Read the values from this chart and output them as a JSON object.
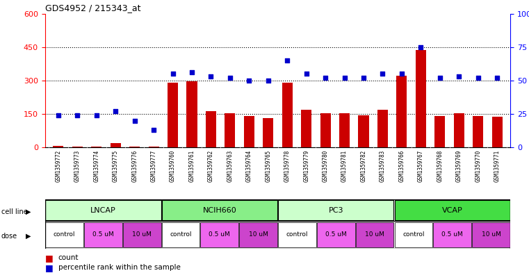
{
  "title": "GDS4952 / 215343_at",
  "samples": [
    "GSM1359772",
    "GSM1359773",
    "GSM1359774",
    "GSM1359775",
    "GSM1359776",
    "GSM1359777",
    "GSM1359760",
    "GSM1359761",
    "GSM1359762",
    "GSM1359763",
    "GSM1359764",
    "GSM1359765",
    "GSM1359778",
    "GSM1359779",
    "GSM1359780",
    "GSM1359781",
    "GSM1359782",
    "GSM1359783",
    "GSM1359766",
    "GSM1359767",
    "GSM1359768",
    "GSM1359769",
    "GSM1359770",
    "GSM1359771"
  ],
  "counts": [
    8,
    5,
    5,
    18,
    3,
    5,
    292,
    297,
    163,
    153,
    140,
    130,
    292,
    168,
    153,
    153,
    143,
    168,
    323,
    438,
    140,
    153,
    140,
    138
  ],
  "percentiles": [
    24,
    24,
    24,
    27,
    20,
    13,
    55,
    56,
    53,
    52,
    50,
    50,
    65,
    55,
    52,
    52,
    52,
    55,
    55,
    75,
    52,
    53,
    52,
    52
  ],
  "cell_lines": [
    {
      "name": "LNCAP",
      "start": 0,
      "end": 6,
      "color": "#ccffcc"
    },
    {
      "name": "NCIH660",
      "start": 6,
      "end": 12,
      "color": "#88ee88"
    },
    {
      "name": "PC3",
      "start": 12,
      "end": 18,
      "color": "#ccffcc"
    },
    {
      "name": "VCAP",
      "start": 18,
      "end": 24,
      "color": "#44dd44"
    }
  ],
  "dose_segments": [
    {
      "start": 0,
      "end": 2,
      "label": "control",
      "color": "#ffffff"
    },
    {
      "start": 2,
      "end": 4,
      "label": "0.5 uM",
      "color": "#ee66ee"
    },
    {
      "start": 4,
      "end": 6,
      "label": "10 uM",
      "color": "#cc44cc"
    },
    {
      "start": 6,
      "end": 8,
      "label": "control",
      "color": "#ffffff"
    },
    {
      "start": 8,
      "end": 10,
      "label": "0.5 uM",
      "color": "#ee66ee"
    },
    {
      "start": 10,
      "end": 12,
      "label": "10 uM",
      "color": "#cc44cc"
    },
    {
      "start": 12,
      "end": 14,
      "label": "control",
      "color": "#ffffff"
    },
    {
      "start": 14,
      "end": 16,
      "label": "0.5 uM",
      "color": "#ee66ee"
    },
    {
      "start": 16,
      "end": 18,
      "label": "10 uM",
      "color": "#cc44cc"
    },
    {
      "start": 18,
      "end": 20,
      "label": "control",
      "color": "#ffffff"
    },
    {
      "start": 20,
      "end": 22,
      "label": "0.5 uM",
      "color": "#ee66ee"
    },
    {
      "start": 22,
      "end": 24,
      "label": "10 uM",
      "color": "#cc44cc"
    }
  ],
  "ylim_left": [
    0,
    600
  ],
  "ylim_right": [
    0,
    100
  ],
  "yticks_left": [
    0,
    150,
    300,
    450,
    600
  ],
  "yticks_right": [
    0,
    25,
    50,
    75,
    100
  ],
  "bar_color": "#cc0000",
  "dot_color": "#0000cc",
  "bg_color": "#ffffff",
  "plot_bg": "#ffffff",
  "label_bg": "#cccccc"
}
